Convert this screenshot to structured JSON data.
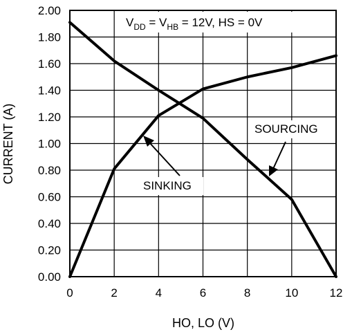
{
  "chart_data": {
    "type": "line",
    "title": "",
    "xlabel": "HO, LO (V)",
    "ylabel": "CURRENT (A)",
    "xlim": [
      0,
      12
    ],
    "ylim": [
      0,
      2.0
    ],
    "grid": true,
    "legend": "none",
    "x_ticks": [
      "0",
      "2",
      "4",
      "6",
      "8",
      "10",
      "12"
    ],
    "y_ticks": [
      "0.00",
      "0.20",
      "0.40",
      "0.60",
      "0.80",
      "1.00",
      "1.20",
      "1.40",
      "1.60",
      "1.80",
      "2.00"
    ],
    "condition": {
      "vdd_main": "V",
      "vdd_sub": "DD",
      "mid": " = V",
      "vhb_sub": "HB",
      "tail": " = 12V, HS = 0V"
    },
    "series": [
      {
        "name": "SINKING",
        "x": [
          0,
          2,
          4,
          6,
          8,
          10,
          12
        ],
        "y": [
          1.91,
          1.62,
          1.4,
          1.19,
          0.88,
          0.58,
          0.0
        ]
      },
      {
        "name": "SOURCING",
        "x": [
          0,
          2,
          4,
          6,
          8,
          10,
          12
        ],
        "y": [
          0.0,
          0.81,
          1.21,
          1.41,
          1.5,
          1.57,
          1.66
        ]
      }
    ]
  }
}
